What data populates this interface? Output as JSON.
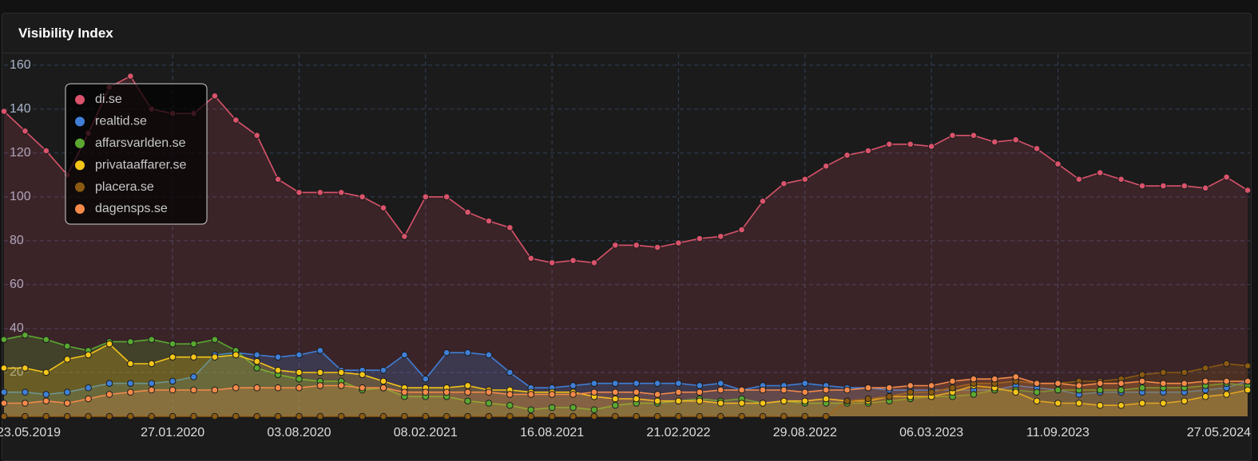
{
  "header": {
    "title": "Visibility Index"
  },
  "chart_data": {
    "type": "line",
    "area": true,
    "grid": true,
    "legend": "top-left",
    "categories": [
      "23.05.2019",
      null,
      null,
      null,
      null,
      null,
      null,
      null,
      "27.01.2020",
      null,
      null,
      null,
      null,
      null,
      "03.08.2020",
      null,
      null,
      null,
      null,
      null,
      "08.02.2021",
      null,
      null,
      null,
      null,
      null,
      "16.08.2021",
      null,
      null,
      null,
      null,
      null,
      "21.02.2022",
      null,
      null,
      null,
      null,
      null,
      "29.08.2022",
      null,
      null,
      null,
      null,
      null,
      "06.03.2023",
      null,
      null,
      null,
      null,
      null,
      "11.09.2023",
      null,
      null,
      null,
      null,
      null,
      null,
      null,
      "27.05.2024",
      null
    ],
    "ylim": [
      0,
      165
    ],
    "yticks": [
      20,
      40,
      60,
      80,
      100,
      120,
      140,
      160
    ],
    "series": [
      {
        "name": "di.se",
        "color": "#d9536b",
        "values": [
          139,
          130,
          121,
          110,
          129,
          150,
          155,
          140,
          138,
          138,
          146,
          135,
          128,
          108,
          102,
          102,
          102,
          100,
          95,
          82,
          100,
          100,
          93,
          89,
          86,
          72,
          70,
          71,
          70,
          78,
          78,
          77,
          79,
          81,
          82,
          85,
          98,
          106,
          108,
          114,
          119,
          121,
          124,
          124,
          123,
          128,
          128,
          125,
          126,
          122,
          115,
          108,
          111,
          108,
          105,
          105,
          105,
          104,
          109,
          103
        ]
      },
      {
        "name": "realtid.se",
        "color": "#3f7fd6",
        "values": [
          11,
          11,
          10,
          11,
          13,
          15,
          15,
          15,
          16,
          18,
          28,
          29,
          28,
          27,
          28,
          30,
          21,
          21,
          21,
          28,
          17,
          29,
          29,
          28,
          20,
          13,
          13,
          14,
          15,
          15,
          15,
          15,
          15,
          14,
          15,
          12,
          14,
          14,
          15,
          14,
          13,
          13,
          12,
          12,
          12,
          12,
          12,
          12,
          14,
          13,
          12,
          10,
          11,
          11,
          11,
          11,
          11,
          12,
          13,
          16
        ]
      },
      {
        "name": "affarsvarlden.se",
        "color": "#5aa832",
        "values": [
          35,
          37,
          35,
          32,
          30,
          34,
          34,
          35,
          33,
          33,
          35,
          30,
          22,
          19,
          17,
          16,
          16,
          12,
          13,
          9,
          9,
          9,
          7,
          6,
          5,
          3,
          4,
          4,
          3,
          5,
          6,
          6,
          7,
          8,
          7,
          8,
          6,
          7,
          6,
          6,
          6,
          6,
          7,
          8,
          9,
          9,
          10,
          12,
          12,
          11,
          12,
          12,
          12,
          12,
          13,
          13,
          13,
          14,
          15,
          14
        ]
      },
      {
        "name": "privataaffarer.se",
        "color": "#f5c518",
        "values": [
          22,
          22,
          20,
          26,
          28,
          33,
          24,
          24,
          27,
          27,
          27,
          28,
          25,
          21,
          20,
          20,
          20,
          19,
          16,
          13,
          13,
          13,
          14,
          12,
          12,
          11,
          11,
          11,
          9,
          8,
          8,
          7,
          7,
          7,
          6,
          6,
          6,
          7,
          7,
          8,
          7,
          7,
          9,
          9,
          9,
          11,
          14,
          13,
          11,
          7,
          6,
          6,
          5,
          5,
          6,
          6,
          7,
          9,
          10,
          12
        ]
      },
      {
        "name": "placera.se",
        "color": "#8a5a12",
        "values": [
          0,
          0,
          0,
          0,
          0,
          0,
          0,
          0,
          0,
          0,
          0,
          0,
          0,
          0,
          0,
          0,
          0,
          0,
          0,
          0,
          0,
          0,
          0,
          0,
          0,
          0,
          0,
          0,
          0,
          0,
          0,
          0,
          0,
          0,
          0,
          0,
          0,
          0,
          0,
          0,
          7,
          8,
          9,
          11,
          11,
          13,
          15,
          15,
          16,
          15,
          15,
          16,
          16,
          17,
          19,
          20,
          20,
          22,
          24,
          23
        ]
      },
      {
        "name": "dagensps.se",
        "color": "#f58a4a",
        "values": [
          6,
          6,
          7,
          6,
          8,
          10,
          11,
          12,
          12,
          12,
          12,
          13,
          13,
          13,
          13,
          14,
          14,
          13,
          13,
          11,
          11,
          11,
          11,
          11,
          10,
          10,
          10,
          10,
          11,
          11,
          11,
          10,
          11,
          11,
          12,
          12,
          12,
          12,
          11,
          12,
          12,
          13,
          13,
          14,
          14,
          16,
          17,
          17,
          18,
          15,
          15,
          14,
          15,
          15,
          16,
          15,
          15,
          16,
          16,
          16
        ]
      }
    ]
  }
}
